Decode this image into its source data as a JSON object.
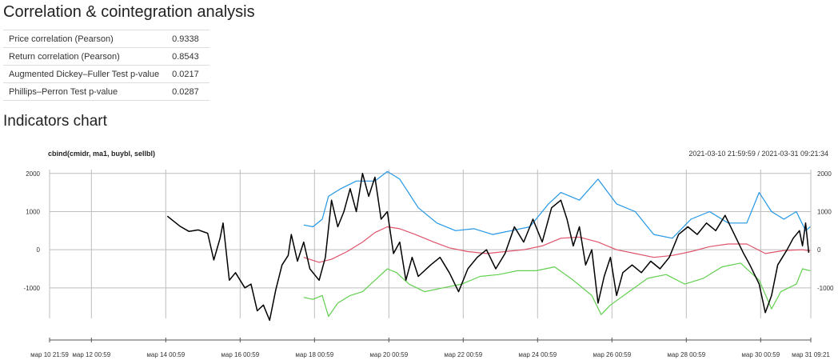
{
  "header": {
    "title": "Correlation & cointegration analysis"
  },
  "stats": [
    {
      "label": "Price correlation (Pearson)",
      "value": "0.9338"
    },
    {
      "label": "Return correlation (Pearson)",
      "value": "0.8543"
    },
    {
      "label": "Augmented Dickey–Fuller Test p-value",
      "value": "0.0217"
    },
    {
      "label": "Phillips–Perron Test p-value",
      "value": "0.0287"
    }
  ],
  "section": {
    "title": "Indicators chart"
  },
  "chart_data": {
    "type": "line",
    "title": "cbind(cmidr, ma1, buybl, sellbl)",
    "date_range": "2021-03-10 21:59:59 / 2021-03-31 09:21:34",
    "x_range": [
      "2021-03-10 21:59",
      "2021-03-31 09:21"
    ],
    "ylim": [
      -1800,
      2100
    ],
    "y_ticks": [
      -1000,
      0,
      1000,
      2000
    ],
    "x_ticks": [
      {
        "label": "мар 10 21:59",
        "t": "2021-03-10 21:59"
      },
      {
        "label": "мар 12 00:59",
        "t": "2021-03-12 00:59"
      },
      {
        "label": "мар 14 00:59",
        "t": "2021-03-14 00:59"
      },
      {
        "label": "мар 16 00:59",
        "t": "2021-03-16 00:59"
      },
      {
        "label": "мар 18 00:59",
        "t": "2021-03-18 00:59"
      },
      {
        "label": "мар 20 00:59",
        "t": "2021-03-20 00:59"
      },
      {
        "label": "мар 22 00:59",
        "t": "2021-03-22 00:59"
      },
      {
        "label": "мар 24 00:59",
        "t": "2021-03-24 00:59"
      },
      {
        "label": "мар 26 00:59",
        "t": "2021-03-26 00:59"
      },
      {
        "label": "мар 28 00:59",
        "t": "2021-03-28 00:59"
      },
      {
        "label": "мар 30 00:59",
        "t": "2021-03-30 00:59"
      },
      {
        "label": "мар 31 09:21",
        "t": "2021-03-31 09:21"
      }
    ],
    "grid": true,
    "series": [
      {
        "name": "cmidr",
        "color": "#000000",
        "points": [
          [
            "2021-03-14 02:00",
            880
          ],
          [
            "2021-03-14 10:00",
            620
          ],
          [
            "2021-03-14 16:00",
            480
          ],
          [
            "2021-03-14 22:00",
            520
          ],
          [
            "2021-03-15 04:00",
            430
          ],
          [
            "2021-03-15 08:00",
            -270
          ],
          [
            "2021-03-15 12:00",
            300
          ],
          [
            "2021-03-15 14:00",
            700
          ],
          [
            "2021-03-15 18:00",
            -800
          ],
          [
            "2021-03-15 22:00",
            -600
          ],
          [
            "2021-03-16 04:00",
            -1000
          ],
          [
            "2021-03-16 08:00",
            -900
          ],
          [
            "2021-03-16 12:00",
            -1600
          ],
          [
            "2021-03-16 16:00",
            -1450
          ],
          [
            "2021-03-16 20:00",
            -1850
          ],
          [
            "2021-03-17 00:00",
            -1050
          ],
          [
            "2021-03-17 04:00",
            -400
          ],
          [
            "2021-03-17 08:00",
            -150
          ],
          [
            "2021-03-17 10:00",
            400
          ],
          [
            "2021-03-17 14:00",
            -300
          ],
          [
            "2021-03-17 18:00",
            200
          ],
          [
            "2021-03-17 22:00",
            -500
          ],
          [
            "2021-03-18 04:00",
            -800
          ],
          [
            "2021-03-18 08:00",
            -200
          ],
          [
            "2021-03-18 12:00",
            1300
          ],
          [
            "2021-03-18 16:00",
            600
          ],
          [
            "2021-03-18 20:00",
            1000
          ],
          [
            "2021-03-19 00:00",
            1600
          ],
          [
            "2021-03-19 04:00",
            1000
          ],
          [
            "2021-03-19 08:00",
            2000
          ],
          [
            "2021-03-19 12:00",
            1400
          ],
          [
            "2021-03-19 16:00",
            1900
          ],
          [
            "2021-03-19 20:00",
            800
          ],
          [
            "2021-03-20 00:00",
            1000
          ],
          [
            "2021-03-20 04:00",
            -100
          ],
          [
            "2021-03-20 08:00",
            200
          ],
          [
            "2021-03-20 12:00",
            -800
          ],
          [
            "2021-03-20 16:00",
            -200
          ],
          [
            "2021-03-20 20:00",
            -700
          ],
          [
            "2021-03-21 04:00",
            -400
          ],
          [
            "2021-03-21 10:00",
            -200
          ],
          [
            "2021-03-21 16:00",
            -600
          ],
          [
            "2021-03-21 22:00",
            -1100
          ],
          [
            "2021-03-22 04:00",
            -500
          ],
          [
            "2021-03-22 10:00",
            -200
          ],
          [
            "2021-03-22 16:00",
            0
          ],
          [
            "2021-03-22 22:00",
            -500
          ],
          [
            "2021-03-23 04:00",
            -100
          ],
          [
            "2021-03-23 10:00",
            600
          ],
          [
            "2021-03-23 16:00",
            200
          ],
          [
            "2021-03-23 22:00",
            800
          ],
          [
            "2021-03-24 04:00",
            200
          ],
          [
            "2021-03-24 10:00",
            1100
          ],
          [
            "2021-03-24 16:00",
            1300
          ],
          [
            "2021-03-24 20:00",
            800
          ],
          [
            "2021-03-25 00:00",
            100
          ],
          [
            "2021-03-25 04:00",
            600
          ],
          [
            "2021-03-25 08:00",
            -400
          ],
          [
            "2021-03-25 12:00",
            0
          ],
          [
            "2021-03-25 16:00",
            -1400
          ],
          [
            "2021-03-25 20:00",
            -700
          ],
          [
            "2021-03-26 00:00",
            -200
          ],
          [
            "2021-03-26 04:00",
            -1200
          ],
          [
            "2021-03-26 08:00",
            -600
          ],
          [
            "2021-03-26 14:00",
            -400
          ],
          [
            "2021-03-26 20:00",
            -600
          ],
          [
            "2021-03-27 02:00",
            -300
          ],
          [
            "2021-03-27 08:00",
            -500
          ],
          [
            "2021-03-27 14:00",
            -200
          ],
          [
            "2021-03-27 20:00",
            400
          ],
          [
            "2021-03-28 02:00",
            600
          ],
          [
            "2021-03-28 08:00",
            400
          ],
          [
            "2021-03-28 14:00",
            700
          ],
          [
            "2021-03-28 20:00",
            500
          ],
          [
            "2021-03-29 02:00",
            900
          ],
          [
            "2021-03-29 08:00",
            400
          ],
          [
            "2021-03-29 14:00",
            -100
          ],
          [
            "2021-03-29 18:00",
            -400
          ],
          [
            "2021-03-30 00:00",
            -900
          ],
          [
            "2021-03-30 04:00",
            -1650
          ],
          [
            "2021-03-30 08:00",
            -1200
          ],
          [
            "2021-03-30 12:00",
            -400
          ],
          [
            "2021-03-30 18:00",
            0
          ],
          [
            "2021-03-30 22:00",
            300
          ],
          [
            "2021-03-31 02:00",
            500
          ],
          [
            "2021-03-31 04:00",
            100
          ],
          [
            "2021-03-31 06:00",
            700
          ],
          [
            "2021-03-31 08:00",
            -80
          ]
        ]
      },
      {
        "name": "ma1",
        "color": "#df536b",
        "points": [
          [
            "2021-03-17 18:00",
            -200
          ],
          [
            "2021-03-18 04:00",
            -330
          ],
          [
            "2021-03-18 12:00",
            -250
          ],
          [
            "2021-03-18 22:00",
            -50
          ],
          [
            "2021-03-19 08:00",
            200
          ],
          [
            "2021-03-19 16:00",
            450
          ],
          [
            "2021-03-20 00:00",
            600
          ],
          [
            "2021-03-20 08:00",
            550
          ],
          [
            "2021-03-20 18:00",
            400
          ],
          [
            "2021-03-21 06:00",
            200
          ],
          [
            "2021-03-21 16:00",
            50
          ],
          [
            "2021-03-22 04:00",
            -50
          ],
          [
            "2021-03-22 16:00",
            -100
          ],
          [
            "2021-03-23 04:00",
            -50
          ],
          [
            "2021-03-23 16:00",
            0
          ],
          [
            "2021-03-24 04:00",
            100
          ],
          [
            "2021-03-24 16:00",
            300
          ],
          [
            "2021-03-25 04:00",
            330
          ],
          [
            "2021-03-25 16:00",
            200
          ],
          [
            "2021-03-26 04:00",
            0
          ],
          [
            "2021-03-26 16:00",
            -100
          ],
          [
            "2021-03-27 04:00",
            -200
          ],
          [
            "2021-03-27 16:00",
            -150
          ],
          [
            "2021-03-28 04:00",
            -50
          ],
          [
            "2021-03-28 16:00",
            80
          ],
          [
            "2021-03-29 04:00",
            150
          ],
          [
            "2021-03-29 16:00",
            150
          ],
          [
            "2021-03-30 04:00",
            -100
          ],
          [
            "2021-03-30 16:00",
            -20
          ],
          [
            "2021-03-31 04:00",
            0
          ],
          [
            "2021-03-31 09:00",
            -30
          ]
        ]
      },
      {
        "name": "buybl",
        "color": "#61d04f",
        "points": [
          [
            "2021-03-17 18:00",
            -1250
          ],
          [
            "2021-03-18 00:00",
            -1300
          ],
          [
            "2021-03-18 06:00",
            -1200
          ],
          [
            "2021-03-18 10:00",
            -1750
          ],
          [
            "2021-03-18 16:00",
            -1400
          ],
          [
            "2021-03-19 00:00",
            -1200
          ],
          [
            "2021-03-19 08:00",
            -1100
          ],
          [
            "2021-03-19 16:00",
            -800
          ],
          [
            "2021-03-20 00:00",
            -500
          ],
          [
            "2021-03-20 06:00",
            -600
          ],
          [
            "2021-03-20 14:00",
            -900
          ],
          [
            "2021-03-21 00:00",
            -1100
          ],
          [
            "2021-03-21 12:00",
            -1000
          ],
          [
            "2021-03-22 00:00",
            -900
          ],
          [
            "2021-03-22 12:00",
            -700
          ],
          [
            "2021-03-23 00:00",
            -650
          ],
          [
            "2021-03-23 12:00",
            -550
          ],
          [
            "2021-03-24 00:00",
            -550
          ],
          [
            "2021-03-24 12:00",
            -450
          ],
          [
            "2021-03-25 00:00",
            -800
          ],
          [
            "2021-03-25 12:00",
            -1200
          ],
          [
            "2021-03-25 18:00",
            -1700
          ],
          [
            "2021-03-26 00:00",
            -1450
          ],
          [
            "2021-03-26 12:00",
            -1100
          ],
          [
            "2021-03-27 00:00",
            -750
          ],
          [
            "2021-03-27 12:00",
            -650
          ],
          [
            "2021-03-28 00:00",
            -900
          ],
          [
            "2021-03-28 12:00",
            -750
          ],
          [
            "2021-03-29 00:00",
            -450
          ],
          [
            "2021-03-29 12:00",
            -350
          ],
          [
            "2021-03-30 00:00",
            -800
          ],
          [
            "2021-03-30 08:00",
            -1550
          ],
          [
            "2021-03-30 14:00",
            -1100
          ],
          [
            "2021-03-31 00:00",
            -900
          ],
          [
            "2021-03-31 04:00",
            -500
          ],
          [
            "2021-03-31 09:00",
            -550
          ]
        ]
      },
      {
        "name": "sellbl",
        "color": "#2297e6",
        "points": [
          [
            "2021-03-17 18:00",
            650
          ],
          [
            "2021-03-18 00:00",
            600
          ],
          [
            "2021-03-18 06:00",
            800
          ],
          [
            "2021-03-18 10:00",
            1400
          ],
          [
            "2021-03-18 18:00",
            1600
          ],
          [
            "2021-03-19 04:00",
            1800
          ],
          [
            "2021-03-19 16:00",
            1800
          ],
          [
            "2021-03-20 00:00",
            2050
          ],
          [
            "2021-03-20 08:00",
            1850
          ],
          [
            "2021-03-20 20:00",
            1100
          ],
          [
            "2021-03-21 08:00",
            700
          ],
          [
            "2021-03-21 20:00",
            500
          ],
          [
            "2021-03-22 08:00",
            550
          ],
          [
            "2021-03-22 20:00",
            400
          ],
          [
            "2021-03-23 08:00",
            500
          ],
          [
            "2021-03-23 20:00",
            600
          ],
          [
            "2021-03-24 08:00",
            1200
          ],
          [
            "2021-03-24 16:00",
            1500
          ],
          [
            "2021-03-25 04:00",
            1300
          ],
          [
            "2021-03-25 16:00",
            1850
          ],
          [
            "2021-03-26 04:00",
            1200
          ],
          [
            "2021-03-26 16:00",
            1000
          ],
          [
            "2021-03-27 04:00",
            400
          ],
          [
            "2021-03-27 16:00",
            300
          ],
          [
            "2021-03-28 04:00",
            800
          ],
          [
            "2021-03-28 16:00",
            1000
          ],
          [
            "2021-03-29 04:00",
            700
          ],
          [
            "2021-03-29 16:00",
            700
          ],
          [
            "2021-03-30 00:00",
            1500
          ],
          [
            "2021-03-30 08:00",
            1000
          ],
          [
            "2021-03-30 16:00",
            800
          ],
          [
            "2021-03-31 00:00",
            1000
          ],
          [
            "2021-03-31 06:00",
            500
          ],
          [
            "2021-03-31 09:00",
            600
          ]
        ]
      }
    ]
  }
}
